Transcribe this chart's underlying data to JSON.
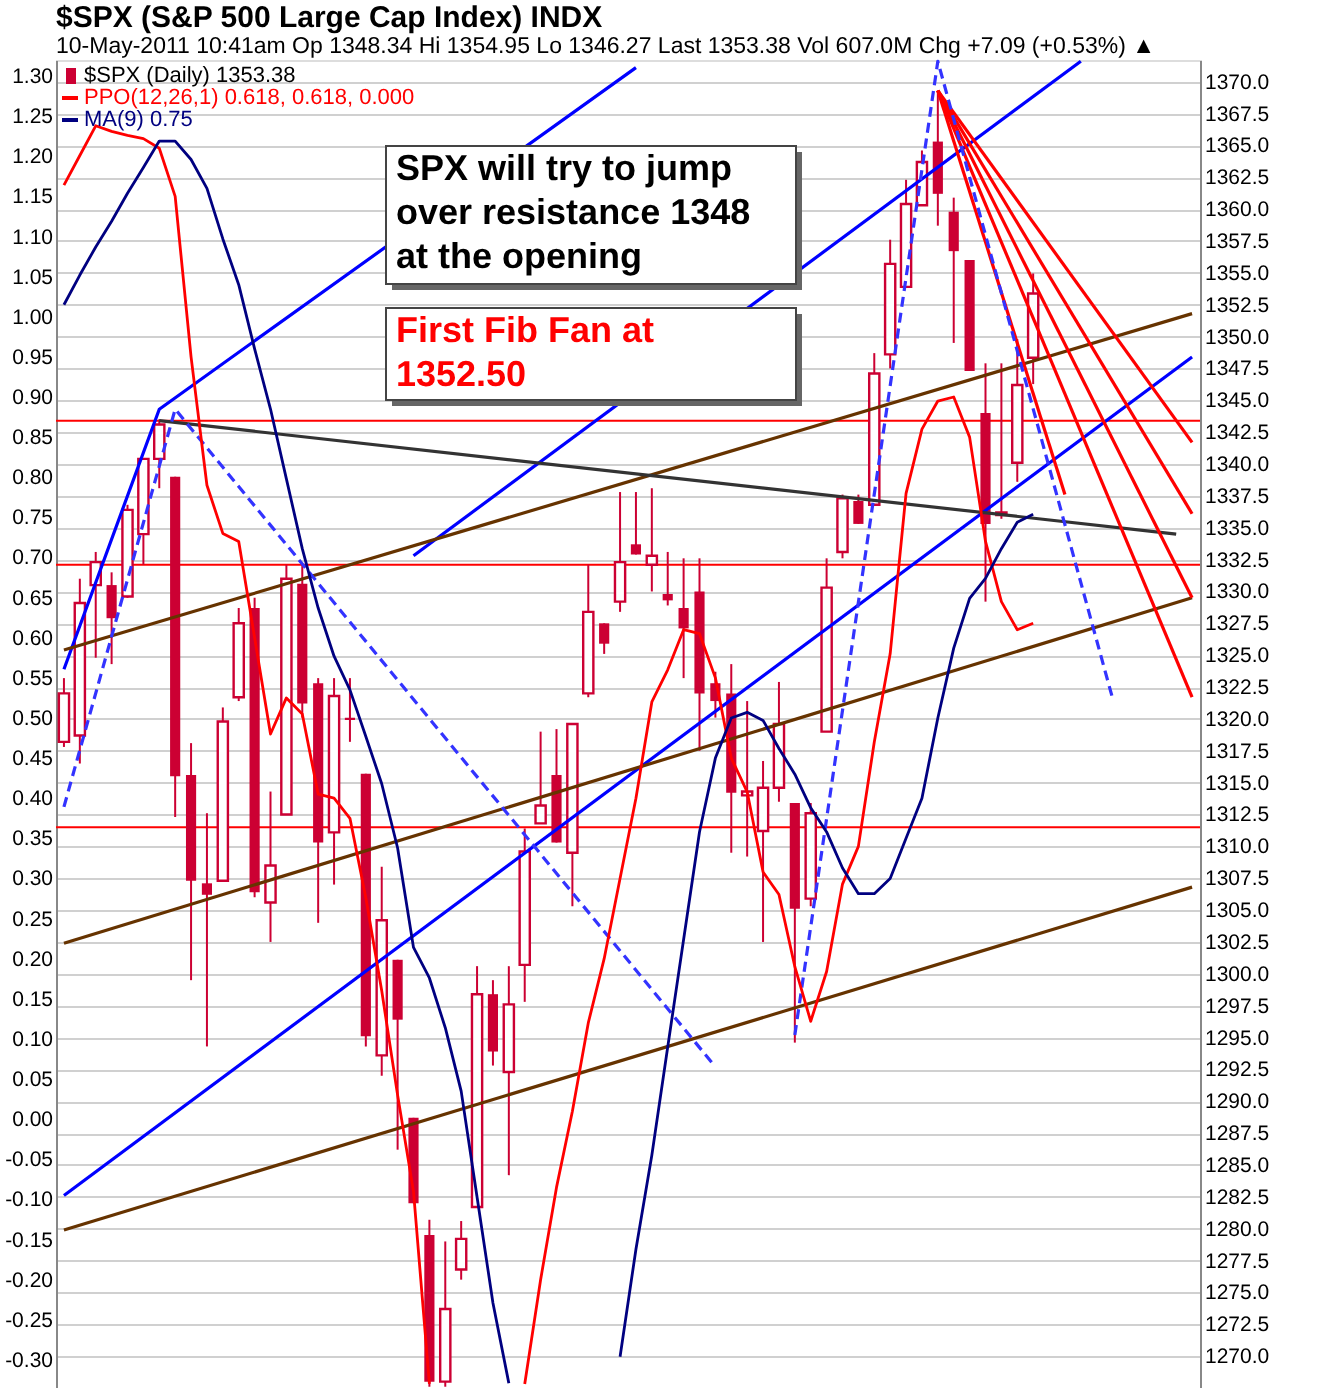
{
  "chart_data": {
    "type": "candlestick",
    "title": "$SPX (S&P 500 Large Cap Index) INDX",
    "subtitle": "10-May-2011 10:41am     Op 1348.34  Hi 1354.95  Lo 1346.27  Last 1353.38  Vol 607.0M  Chg +7.09 (+0.53%) ▲",
    "annotations": [
      "SPX will try to jump over resistance 1348 at the opening",
      "First Fib Fan at 1352.50"
    ],
    "categories": [
      null,
      null,
      null,
      null,
      null,
      null,
      null,
      null,
      null,
      null,
      null,
      null,
      null,
      null,
      null,
      null,
      null,
      null,
      null,
      null,
      null,
      null,
      null,
      null,
      null,
      null,
      null,
      null,
      null,
      null,
      null,
      null,
      null,
      null,
      null,
      null,
      null,
      null,
      null,
      null,
      null,
      null,
      null,
      null,
      null,
      null,
      null,
      null,
      null,
      null,
      null,
      null,
      null,
      null,
      null,
      null,
      null,
      null,
      null,
      null,
      null,
      null,
      null,
      null,
      null,
      null,
      null,
      null,
      null,
      null,
      null,
      null
    ],
    "legend": "top left",
    "grid": "y",
    "ylim": [
      -0.335,
      1.32
    ],
    "yticks": [
      {
        "value": -0.3,
        "label": "-0.30"
      },
      {
        "value": -0.25,
        "label": "-0.25"
      },
      {
        "value": -0.2,
        "label": "-0.20"
      },
      {
        "value": -0.15,
        "label": "-0.15"
      },
      {
        "value": -0.1,
        "label": "-0.10"
      },
      {
        "value": -0.05,
        "label": "-0.05"
      },
      {
        "value": 0,
        "label": "0.00"
      },
      {
        "value": 0.05,
        "label": "0.05"
      },
      {
        "value": 0.1,
        "label": "0.10"
      },
      {
        "value": 0.15,
        "label": "0.15"
      },
      {
        "value": 0.2,
        "label": "0.20"
      },
      {
        "value": 0.25,
        "label": "0.25"
      },
      {
        "value": 0.3,
        "label": "0.30"
      },
      {
        "value": 0.35,
        "label": "0.35"
      },
      {
        "value": 0.4,
        "label": "0.40"
      },
      {
        "value": 0.45,
        "label": "0.45"
      },
      {
        "value": 0.5,
        "label": "0.50"
      },
      {
        "value": 0.55,
        "label": "0.55"
      },
      {
        "value": 0.6,
        "label": "0.60"
      },
      {
        "value": 0.65,
        "label": "0.65"
      },
      {
        "value": 0.7,
        "label": "0.70"
      },
      {
        "value": 0.75,
        "label": "0.75"
      },
      {
        "value": 0.8,
        "label": "0.80"
      },
      {
        "value": 0.85,
        "label": "0.85"
      },
      {
        "value": 0.9,
        "label": "0.90"
      },
      {
        "value": 0.95,
        "label": "0.95"
      },
      {
        "value": 1,
        "label": "1.00"
      },
      {
        "value": 1.05,
        "label": "1.05"
      },
      {
        "value": 1.1,
        "label": "1.10"
      },
      {
        "value": 1.15,
        "label": "1.15"
      },
      {
        "value": 1.2,
        "label": "1.20"
      },
      {
        "value": 1.25,
        "label": "1.25"
      },
      {
        "value": 1.3,
        "label": "1.30"
      }
    ],
    "y2lim": [
      1267.5,
      1371.7
    ],
    "y2ticks": [
      {
        "value": 1270,
        "label": "1270.0"
      },
      1272.5,
      {
        "value": 1275,
        "label": "1275.0"
      },
      1277.5,
      {
        "value": 1280,
        "label": "1280.0"
      },
      1282.5,
      {
        "value": 1285,
        "label": "1285.0"
      },
      1287.5,
      {
        "value": 1290,
        "label": "1290.0"
      },
      1292.5,
      {
        "value": 1295,
        "label": "1295.0"
      },
      1297.5,
      {
        "value": 1300,
        "label": "1300.0"
      },
      1302.5,
      {
        "value": 1305,
        "label": "1305.0"
      },
      1307.5,
      {
        "value": 1310,
        "label": "1310.0"
      },
      1312.5,
      {
        "value": 1315,
        "label": "1315.0"
      },
      1317.5,
      {
        "value": 1320,
        "label": "1320.0"
      },
      1322.5,
      {
        "value": 1325,
        "label": "1325.0"
      },
      1327.5,
      {
        "value": 1330,
        "label": "1330.0"
      },
      1332.5,
      {
        "value": 1335,
        "label": "1335.0"
      },
      1337.5,
      {
        "value": 1340,
        "label": "1340.0"
      },
      1342.5,
      {
        "value": 1345,
        "label": "1345.0"
      },
      1347.5,
      {
        "value": 1350,
        "label": "1350.0"
      },
      1352.5,
      {
        "value": 1355,
        "label": "1355.0"
      },
      1357.5,
      {
        "value": 1360,
        "label": "1360.0"
      },
      1362.5,
      {
        "value": 1365,
        "label": "1365.0"
      },
      1367.5,
      {
        "value": 1370,
        "label": "1370.0"
      }
    ],
    "ref_lines": [
      {
        "axis": "y2",
        "value": 1343.4,
        "color": "#ff0000"
      },
      {
        "axis": "y2",
        "value": 1332.1,
        "color": "#ff0000"
      },
      {
        "axis": "y2",
        "value": 1311.5,
        "color": "#ff0000"
      }
    ],
    "series": [
      {
        "name": "$SPX (Daily) 1353.38",
        "axis": "y2",
        "color": "#cc0033",
        "ohlc": [
          [
            1318.2,
            1323.2,
            1317.8,
            1322.0
          ],
          [
            1318.7,
            1331.0,
            1316.5,
            1329.1
          ],
          [
            1330.5,
            1333.1,
            1324.8,
            1332.3
          ],
          [
            1330.5,
            1331.5,
            1324.3,
            1327.9
          ],
          [
            1329.6,
            1336.8,
            1329.5,
            1336.4
          ],
          [
            1334.5,
            1340.4,
            1332.1,
            1340.4
          ],
          [
            1340.4,
            1343.5,
            1338.1,
            1343.1
          ],
          [
            1339.0,
            1339.0,
            1312.3,
            1315.5
          ],
          [
            1315.6,
            1318.1,
            1299.5,
            1307.3
          ],
          [
            1307.1,
            1312.6,
            1294.3,
            1306.2
          ],
          [
            1307.3,
            1320.9,
            1307.3,
            1319.8
          ],
          [
            1321.7,
            1328.7,
            1321.4,
            1327.5
          ],
          [
            1328.7,
            1329.5,
            1306.0,
            1306.4
          ],
          [
            1305.6,
            1314.3,
            1302.5,
            1308.5
          ],
          [
            1312.5,
            1332.1,
            1312.5,
            1331.0
          ],
          [
            1330.6,
            1332.1,
            1320.1,
            1321.2
          ],
          [
            1322.8,
            1323.2,
            1304.0,
            1310.3
          ],
          [
            1311.1,
            1323.2,
            1307.0,
            1321.8
          ],
          [
            1320.0,
            1323.2,
            1318.2,
            1320.0
          ],
          [
            1315.7,
            1315.7,
            1294.3,
            1295.1
          ],
          [
            1293.6,
            1308.4,
            1292.0,
            1304.2
          ],
          [
            1301.1,
            1301.1,
            1286.2,
            1296.4
          ],
          [
            1288.7,
            1288.7,
            1282.0,
            1282.0
          ],
          [
            1279.5,
            1280.7,
            1267.6,
            1268.0
          ],
          [
            1268.0,
            1279.0,
            1267.6,
            1273.7
          ],
          [
            1276.8,
            1280.6,
            1276.0,
            1279.2
          ],
          [
            1281.7,
            1300.6,
            1281.7,
            1298.4
          ],
          [
            1298.4,
            1299.5,
            1292.8,
            1293.9
          ],
          [
            1292.3,
            1300.6,
            1284.2,
            1297.6
          ],
          [
            1300.7,
            1311.4,
            1297.8,
            1309.6
          ],
          [
            1311.8,
            1319.0,
            1311.8,
            1313.2
          ],
          [
            1315.6,
            1319.2,
            1310.3,
            1310.3
          ],
          [
            1309.5,
            1319.6,
            1305.3,
            1319.6
          ],
          [
            1322.0,
            1332.1,
            1321.7,
            1328.4
          ],
          [
            1327.5,
            1327.5,
            1325.1,
            1325.9
          ],
          [
            1329.2,
            1337.8,
            1328.4,
            1332.3
          ],
          [
            1333.7,
            1337.8,
            1332.9,
            1332.9
          ],
          [
            1332.1,
            1338.1,
            1330.0,
            1332.8
          ],
          [
            1329.8,
            1333.1,
            1328.9,
            1329.3
          ],
          [
            1328.7,
            1332.6,
            1323.2,
            1327.1
          ],
          [
            1330.0,
            1332.6,
            1317.5,
            1322.0
          ],
          [
            1322.8,
            1323.7,
            1320.1,
            1321.4
          ],
          [
            1322.0,
            1324.3,
            1309.5,
            1314.2
          ],
          [
            1314.0,
            1321.4,
            1309.2,
            1314.3
          ],
          [
            1311.2,
            1316.7,
            1302.5,
            1314.6
          ],
          [
            1314.6,
            1322.9,
            1313.5,
            1319.6
          ],
          [
            1313.4,
            1313.4,
            1294.6,
            1305.1
          ],
          [
            1305.9,
            1313.4,
            1305.3,
            1312.6
          ],
          [
            1319.0,
            1332.6,
            1319.0,
            1330.3
          ],
          [
            1333.1,
            1337.6,
            1332.6,
            1337.3
          ],
          [
            1337.1,
            1337.6,
            1335.3,
            1335.3
          ],
          [
            1336.8,
            1348.7,
            1336.8,
            1347.1
          ],
          [
            1348.6,
            1357.6,
            1347.5,
            1355.7
          ],
          [
            1353.9,
            1362.3,
            1353.9,
            1360.4
          ],
          [
            1360.3,
            1364.6,
            1360.3,
            1363.7
          ],
          [
            1365.3,
            1369.3,
            1358.7,
            1361.2
          ],
          [
            1359.8,
            1360.9,
            1349.5,
            1356.7
          ],
          [
            1356.0,
            1356.0,
            1347.3,
            1347.3
          ],
          [
            1344.0,
            1347.9,
            1329.2,
            1335.3
          ],
          [
            1336.0,
            1347.9,
            1335.7,
            1336.2
          ],
          [
            1340.1,
            1349.8,
            1338.6,
            1346.2
          ],
          [
            1348.34,
            1354.95,
            1346.27,
            1353.38
          ],
          null,
          null,
          null,
          null,
          null,
          null,
          null,
          null,
          null,
          null
        ]
      },
      {
        "name": "PPO(12,26,1) 0.618, 0.618, 0.000",
        "type": "line",
        "color": "#ff0000",
        "values": [
          1.164,
          1.201,
          1.238,
          1.231,
          1.226,
          1.222,
          1.21,
          1.15,
          0.95,
          0.79,
          0.73,
          0.72,
          0.6,
          0.48,
          0.525,
          0.505,
          0.405,
          0.4,
          0.375,
          0.276,
          0.16,
          0.03,
          -0.09,
          -0.33,
          null,
          null,
          null,
          null,
          null,
          -0.33,
          -0.2,
          -0.085,
          0.01,
          0.12,
          0.2,
          0.3,
          0.4,
          0.52,
          0.56,
          0.61,
          0.605,
          0.55,
          0.45,
          0.408,
          0.308,
          0.28,
          0.19,
          0.122,
          0.184,
          0.293,
          0.34,
          0.47,
          0.58,
          0.78,
          0.86,
          0.895,
          0.9,
          0.85,
          0.72,
          0.645,
          0.61,
          0.618,
          null,
          null,
          null,
          null,
          null,
          null,
          null,
          null,
          null,
          null
        ]
      },
      {
        "name": "MA(9) 0.75",
        "type": "line",
        "color": "#000080",
        "values": [
          1.015,
          1.052,
          1.087,
          1.119,
          1.154,
          1.186,
          1.219,
          1.219,
          1.196,
          1.16,
          1.097,
          1.04,
          0.96,
          0.885,
          0.798,
          0.711,
          0.637,
          0.577,
          0.535,
          0.477,
          0.418,
          0.338,
          0.214,
          0.176,
          0.114,
          0.035,
          -0.097,
          -0.229,
          -0.329,
          null,
          null,
          null,
          null,
          null,
          null,
          -0.296,
          -0.162,
          -0.045,
          0.09,
          0.224,
          0.358,
          0.45,
          0.5,
          0.507,
          0.497,
          0.462,
          0.43,
          0.388,
          0.358,
          0.313,
          0.281,
          0.281,
          0.3,
          0.35,
          0.4,
          0.5,
          0.587,
          0.649,
          0.674,
          0.711,
          0.744,
          0.754,
          null,
          null,
          null,
          null,
          null,
          null,
          null,
          null,
          null,
          null
        ]
      },
      {
        "type": "line",
        "axis": "y2",
        "color": "#0000ff",
        "values": [
          1323.9,
          null,
          null,
          null,
          null,
          null,
          1344.3,
          null,
          null,
          null,
          null,
          null,
          null,
          null,
          null,
          null,
          null,
          null,
          null,
          null,
          null,
          null,
          null,
          null,
          null,
          null,
          null,
          null,
          null,
          null,
          null,
          null,
          null,
          null,
          null,
          null,
          1371.1,
          null,
          null,
          null,
          null,
          null,
          null,
          null,
          null,
          null,
          null,
          null,
          null,
          null,
          null,
          null,
          null,
          null,
          null,
          null,
          null,
          null,
          null,
          null,
          null,
          null,
          null,
          null,
          null,
          null,
          null,
          null,
          null,
          null,
          null,
          null
        ]
      },
      {
        "type": "line",
        "axis": "y2",
        "color": "#0000ff",
        "values": [
          null,
          null,
          null,
          null,
          null,
          null,
          null,
          null,
          null,
          null,
          null,
          null,
          null,
          null,
          null,
          null,
          null,
          null,
          null,
          null,
          null,
          null,
          1332.8,
          null,
          null,
          null,
          null,
          null,
          null,
          null,
          null,
          null,
          null,
          null,
          null,
          null,
          null,
          null,
          null,
          null,
          null,
          null,
          null,
          null,
          null,
          null,
          null,
          null,
          null,
          null,
          null,
          null,
          null,
          null,
          null,
          null,
          null,
          null,
          null,
          null,
          null,
          null,
          null,
          null,
          1371.6,
          null,
          null,
          null,
          null,
          null,
          null,
          null
        ]
      },
      {
        "type": "line",
        "axis": "y2",
        "color": "#0000ff",
        "values": [
          1282.6,
          null,
          null,
          null,
          null,
          null,
          null,
          null,
          null,
          null,
          null,
          null,
          null,
          null,
          null,
          null,
          null,
          null,
          null,
          null,
          null,
          null,
          null,
          null,
          null,
          null,
          null,
          null,
          null,
          null,
          null,
          null,
          null,
          null,
          null,
          null,
          null,
          null,
          null,
          null,
          null,
          null,
          null,
          null,
          null,
          null,
          null,
          null,
          null,
          null,
          null,
          null,
          null,
          null,
          null,
          null,
          null,
          null,
          null,
          null,
          null,
          null,
          null,
          null,
          null,
          null,
          null,
          null,
          null,
          null,
          null,
          1348.4
        ]
      },
      {
        "type": "line",
        "axis": "y2",
        "color": "#663300",
        "values": [
          1325.4,
          null,
          null,
          null,
          null,
          null,
          null,
          null,
          null,
          null,
          null,
          null,
          null,
          null,
          null,
          null,
          null,
          null,
          null,
          null,
          null,
          null,
          null,
          null,
          null,
          null,
          null,
          null,
          null,
          null,
          null,
          null,
          null,
          null,
          null,
          null,
          null,
          null,
          null,
          null,
          null,
          null,
          null,
          null,
          null,
          null,
          null,
          null,
          null,
          null,
          null,
          null,
          null,
          null,
          null,
          null,
          null,
          null,
          null,
          null,
          null,
          null,
          null,
          null,
          null,
          null,
          null,
          null,
          null,
          null,
          null,
          1351.8
        ]
      },
      {
        "type": "line",
        "axis": "y2",
        "color": "#663300",
        "values": [
          1302.4,
          null,
          null,
          null,
          null,
          null,
          null,
          null,
          null,
          null,
          null,
          null,
          null,
          null,
          null,
          null,
          null,
          null,
          null,
          null,
          null,
          null,
          null,
          null,
          null,
          null,
          null,
          null,
          null,
          null,
          null,
          null,
          null,
          null,
          null,
          null,
          null,
          null,
          null,
          null,
          null,
          null,
          null,
          null,
          null,
          null,
          null,
          null,
          null,
          null,
          null,
          null,
          null,
          null,
          null,
          null,
          null,
          null,
          null,
          null,
          null,
          null,
          null,
          null,
          null,
          null,
          null,
          null,
          null,
          null,
          null,
          1329.5
        ]
      },
      {
        "type": "line",
        "axis": "y2",
        "color": "#663300",
        "values": [
          1279.9,
          null,
          null,
          null,
          null,
          null,
          null,
          null,
          null,
          null,
          null,
          null,
          null,
          null,
          null,
          null,
          null,
          null,
          null,
          null,
          null,
          null,
          null,
          null,
          null,
          null,
          null,
          null,
          null,
          null,
          null,
          null,
          null,
          null,
          null,
          null,
          null,
          null,
          null,
          null,
          null,
          null,
          null,
          null,
          null,
          null,
          null,
          null,
          null,
          null,
          null,
          null,
          null,
          null,
          null,
          null,
          null,
          null,
          null,
          null,
          null,
          null,
          null,
          null,
          null,
          null,
          null,
          null,
          null,
          null,
          null,
          1306.8
        ]
      },
      {
        "type": "line",
        "axis": "y2",
        "color": "#333333",
        "values": [
          null,
          null,
          null,
          null,
          null,
          null,
          1343.4,
          null,
          null,
          null,
          null,
          null,
          null,
          null,
          null,
          null,
          null,
          null,
          null,
          null,
          null,
          null,
          null,
          null,
          null,
          null,
          null,
          null,
          null,
          null,
          null,
          null,
          null,
          null,
          null,
          null,
          null,
          null,
          null,
          null,
          null,
          null,
          null,
          null,
          null,
          null,
          null,
          null,
          null,
          null,
          null,
          null,
          null,
          null,
          null,
          null,
          null,
          null,
          null,
          null,
          null,
          null,
          null,
          null,
          null,
          null,
          null,
          null,
          null,
          null,
          1334.5,
          null
        ]
      },
      {
        "type": "line",
        "axis": "y2",
        "color": "#ff0000",
        "values": [
          null,
          null,
          null,
          null,
          null,
          null,
          null,
          null,
          null,
          null,
          null,
          null,
          null,
          null,
          null,
          null,
          null,
          null,
          null,
          null,
          null,
          null,
          null,
          null,
          null,
          null,
          null,
          null,
          null,
          null,
          null,
          null,
          null,
          null,
          null,
          null,
          null,
          null,
          null,
          null,
          null,
          null,
          null,
          null,
          null,
          null,
          null,
          null,
          null,
          null,
          null,
          null,
          null,
          null,
          null,
          1369.3,
          null,
          null,
          null,
          null,
          null,
          null,
          null,
          1337.6,
          null,
          null,
          null,
          null,
          null,
          null,
          null,
          null
        ]
      },
      {
        "type": "line",
        "axis": "y2",
        "color": "#ff0000",
        "values": [
          null,
          null,
          null,
          null,
          null,
          null,
          null,
          null,
          null,
          null,
          null,
          null,
          null,
          null,
          null,
          null,
          null,
          null,
          null,
          null,
          null,
          null,
          null,
          null,
          null,
          null,
          null,
          null,
          null,
          null,
          null,
          null,
          null,
          null,
          null,
          null,
          null,
          null,
          null,
          null,
          null,
          null,
          null,
          null,
          null,
          null,
          null,
          null,
          null,
          null,
          null,
          null,
          null,
          null,
          null,
          1369.3,
          null,
          null,
          null,
          null,
          null,
          null,
          null,
          null,
          null,
          null,
          null,
          null,
          null,
          null,
          null,
          1341.7
        ]
      },
      {
        "type": "line",
        "axis": "y2",
        "color": "#ff0000",
        "values": [
          null,
          null,
          null,
          null,
          null,
          null,
          null,
          null,
          null,
          null,
          null,
          null,
          null,
          null,
          null,
          null,
          null,
          null,
          null,
          null,
          null,
          null,
          null,
          null,
          null,
          null,
          null,
          null,
          null,
          null,
          null,
          null,
          null,
          null,
          null,
          null,
          null,
          null,
          null,
          null,
          null,
          null,
          null,
          null,
          null,
          null,
          null,
          null,
          null,
          null,
          null,
          null,
          null,
          null,
          null,
          1369.3,
          null,
          null,
          null,
          null,
          null,
          null,
          null,
          null,
          null,
          null,
          null,
          null,
          null,
          null,
          null,
          1336.1
        ]
      },
      {
        "type": "line",
        "axis": "y2",
        "color": "#ff0000",
        "values": [
          null,
          null,
          null,
          null,
          null,
          null,
          null,
          null,
          null,
          null,
          null,
          null,
          null,
          null,
          null,
          null,
          null,
          null,
          null,
          null,
          null,
          null,
          null,
          null,
          null,
          null,
          null,
          null,
          null,
          null,
          null,
          null,
          null,
          null,
          null,
          null,
          null,
          null,
          null,
          null,
          null,
          null,
          null,
          null,
          null,
          null,
          null,
          null,
          null,
          null,
          null,
          null,
          null,
          null,
          null,
          1369.3,
          null,
          null,
          null,
          null,
          null,
          null,
          null,
          null,
          null,
          null,
          null,
          null,
          null,
          null,
          null,
          1329.5
        ]
      },
      {
        "type": "line",
        "axis": "y2",
        "color": "#ff0000",
        "values": [
          null,
          null,
          null,
          null,
          null,
          null,
          null,
          null,
          null,
          null,
          null,
          null,
          null,
          null,
          null,
          null,
          null,
          null,
          null,
          null,
          null,
          null,
          null,
          null,
          null,
          null,
          null,
          null,
          null,
          null,
          null,
          null,
          null,
          null,
          null,
          null,
          null,
          null,
          null,
          null,
          null,
          null,
          null,
          null,
          null,
          null,
          null,
          null,
          null,
          null,
          null,
          null,
          null,
          null,
          null,
          1369.3,
          null,
          null,
          null,
          null,
          null,
          null,
          null,
          null,
          null,
          null,
          null,
          null,
          null,
          null,
          null,
          1321.7
        ]
      },
      {
        "type": "line",
        "axis": "y2",
        "color": "#3333ff",
        "line_style": "dashed",
        "values": [
          1313.1,
          null,
          null,
          null,
          null,
          null,
          null,
          1344.3,
          null,
          null,
          null,
          null,
          null,
          null,
          null,
          null,
          null,
          null,
          null,
          null,
          null,
          null,
          null,
          null,
          null,
          null,
          null,
          null,
          null,
          null,
          null,
          null,
          null,
          null,
          null,
          null,
          null,
          null,
          null,
          null,
          null,
          1292.7,
          null,
          null,
          null,
          null,
          null,
          null,
          null,
          null,
          null,
          null,
          null,
          null,
          null,
          null,
          null,
          null,
          null,
          null,
          null,
          null,
          null,
          null,
          null,
          null,
          null,
          null,
          null,
          null,
          null,
          null
        ]
      },
      {
        "type": "line",
        "axis": "y2",
        "color": "#3333ff",
        "line_style": "dashed",
        "values": [
          null,
          null,
          null,
          null,
          null,
          null,
          null,
          null,
          null,
          null,
          null,
          null,
          null,
          null,
          null,
          null,
          null,
          null,
          null,
          null,
          null,
          null,
          null,
          null,
          null,
          null,
          null,
          null,
          null,
          null,
          null,
          null,
          null,
          null,
          null,
          null,
          null,
          null,
          null,
          null,
          null,
          null,
          null,
          null,
          null,
          null,
          1295.2,
          null,
          null,
          null,
          null,
          null,
          null,
          null,
          null,
          1371.6,
          null,
          null,
          null,
          null,
          null,
          null,
          null,
          null,
          null,
          null,
          1321.6,
          null,
          null,
          null,
          null,
          null
        ]
      }
    ]
  }
}
